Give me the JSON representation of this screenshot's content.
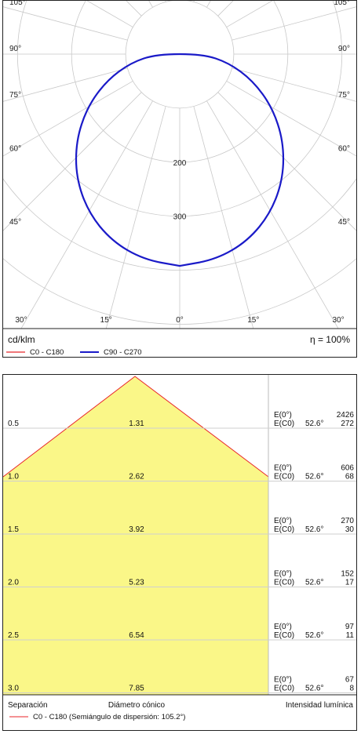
{
  "polar": {
    "angle_labels": [
      {
        "text": "105°",
        "side": "left",
        "deg": 105
      },
      {
        "text": "105°",
        "side": "right",
        "deg": 105
      },
      {
        "text": "90°",
        "side": "left",
        "deg": 90
      },
      {
        "text": "90°",
        "side": "right",
        "deg": 90
      },
      {
        "text": "75°",
        "side": "left",
        "deg": 75
      },
      {
        "text": "75°",
        "side": "right",
        "deg": 75
      },
      {
        "text": "60°",
        "side": "left",
        "deg": 60
      },
      {
        "text": "60°",
        "side": "right",
        "deg": 60
      },
      {
        "text": "45°",
        "side": "left",
        "deg": 45
      },
      {
        "text": "45°",
        "side": "right",
        "deg": 45
      },
      {
        "text": "30°",
        "side": "left",
        "deg": 30
      },
      {
        "text": "30°",
        "side": "right",
        "deg": 30
      },
      {
        "text": "15°",
        "side": "left",
        "deg": 15
      },
      {
        "text": "15°",
        "side": "right",
        "deg": 15
      },
      {
        "text": "0°",
        "side": "center",
        "deg": 0
      }
    ],
    "radial_labels": [
      {
        "text": "200",
        "value": 200
      },
      {
        "text": "300",
        "value": 300
      }
    ],
    "unit_label": "cd/klm",
    "efficiency_label": "η = 100%",
    "legend": [
      {
        "label": "C0 - C180",
        "color": "#e8262a"
      },
      {
        "label": "C90 - C270",
        "color": "#1a1ac8"
      }
    ]
  },
  "chart_data": [
    {
      "type": "line",
      "subtype": "polar",
      "radial_unit": "cd/klm",
      "radial_ticks": [
        100,
        200,
        300,
        400,
        500
      ],
      "series": [
        {
          "name": "C90 - C270",
          "color": "#1a1ac8",
          "angles_deg": [
            0,
            10,
            20,
            30,
            40,
            50,
            60,
            70,
            80,
            90
          ],
          "values": [
            392,
            386,
            368,
            338,
            298,
            250,
            198,
            144,
            92,
            42
          ]
        }
      ]
    },
    {
      "type": "table",
      "subtype": "cone_diagram",
      "rows": [
        {
          "separation": "0.5",
          "diameter": "1.31",
          "e0_label": "E(0°)",
          "e0_value": "2426",
          "ec_label": "E(C0)",
          "angle": "52.6°",
          "ec_value": "272"
        },
        {
          "separation": "1.0",
          "diameter": "2.62",
          "e0_label": "E(0°)",
          "e0_value": "606",
          "ec_label": "E(C0)",
          "angle": "52.6°",
          "ec_value": "68"
        },
        {
          "separation": "1.5",
          "diameter": "3.92",
          "e0_label": "E(0°)",
          "e0_value": "270",
          "ec_label": "E(C0)",
          "angle": "52.6°",
          "ec_value": "30"
        },
        {
          "separation": "2.0",
          "diameter": "5.23",
          "e0_label": "E(0°)",
          "e0_value": "152",
          "ec_label": "E(C0)",
          "angle": "52.6°",
          "ec_value": "17"
        },
        {
          "separation": "2.5",
          "diameter": "6.54",
          "e0_label": "E(0°)",
          "e0_value": "97",
          "ec_label": "E(C0)",
          "angle": "52.6°",
          "ec_value": "11"
        },
        {
          "separation": "3.0",
          "diameter": "7.85",
          "e0_label": "E(0°)",
          "e0_value": "67",
          "ec_label": "E(C0)",
          "angle": "52.6°",
          "ec_value": "8"
        }
      ],
      "footer": {
        "separation_label": "Separación",
        "diameter_label": "Diámetro cónico",
        "intensity_label": "Intensidad lumínica",
        "legend_label": "C0 - C180 (Semiángulo de dispersión: 105.2°)",
        "legend_color": "#e8262a"
      },
      "fill_color": "#faf788"
    }
  ]
}
